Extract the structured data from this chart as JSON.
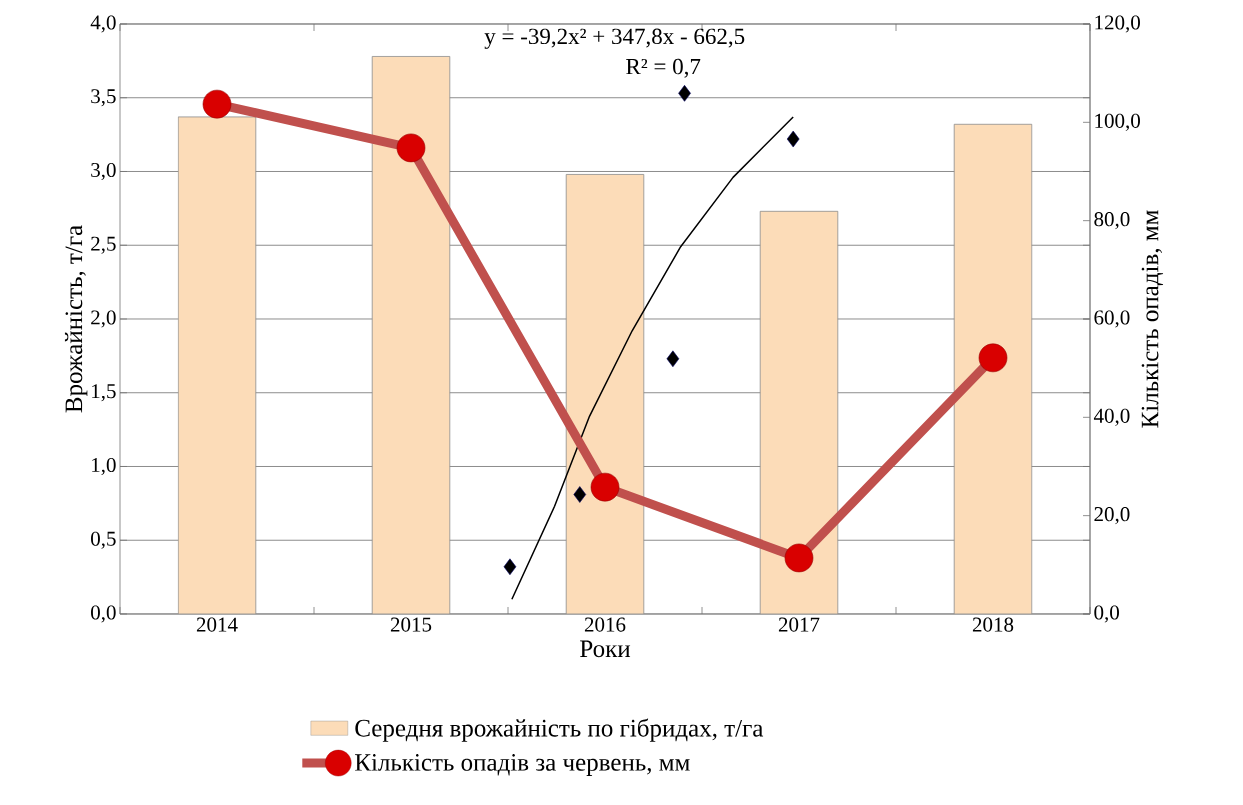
{
  "chart_data": {
    "type": "bar",
    "xlabel": "Роки",
    "ylabel": "Врожайність, т/га",
    "y2label": "Кількість опадів, мм",
    "x": [
      2014,
      2015,
      2016,
      2017,
      2018
    ],
    "xlim": [
      2013.5,
      2018.5
    ],
    "xticks": [
      2014,
      2015,
      2016,
      2017,
      2018
    ],
    "series": [
      {
        "name": "Середня врожайність по гібридах, т/га",
        "color": "#fcdcb8",
        "values": [
          3.37,
          3.78,
          2.98,
          2.73,
          3.32
        ]
      },
      {
        "name": "Кількість опадів за червень, мм",
        "type": "line",
        "axis": "y2",
        "color": "#c0504d",
        "marker": "circle",
        "values": [
          103.7,
          94.8,
          25.8,
          11.4,
          52.1
        ]
      },
      {
        "type": "scatter",
        "color": "#000000",
        "marker": "diamond",
        "x": [
          2015.51,
          2015.87,
          2016.35,
          2016.41,
          2016.97
        ],
        "values": [
          0.32,
          0.81,
          1.73,
          3.53,
          3.22
        ]
      },
      {
        "type": "line",
        "color": "#000000",
        "marker": "none",
        "x": [
          2015.52,
          2015.74,
          2015.92,
          2016.14,
          2016.39,
          2016.66,
          2016.97
        ],
        "values": [
          0.1,
          0.73,
          1.34,
          1.92,
          2.49,
          2.96,
          3.37
        ]
      }
    ],
    "ylim": [
      0,
      4
    ],
    "yticks": [
      {
        "value": 0,
        "label": "0,0"
      },
      {
        "value": 0.5,
        "label": "0,5"
      },
      {
        "value": 1,
        "label": "1,0"
      },
      {
        "value": 1.5,
        "label": "1,5"
      },
      {
        "value": 2,
        "label": "2,0"
      },
      {
        "value": 2.5,
        "label": "2,5"
      },
      {
        "value": 3,
        "label": "3,0"
      },
      {
        "value": 3.5,
        "label": "3,5"
      },
      {
        "value": 4,
        "label": "4,0"
      }
    ],
    "y2lim": [
      0,
      120
    ],
    "y2ticks": [
      {
        "value": 0,
        "label": "0,0"
      },
      {
        "value": 20,
        "label": "20,0"
      },
      {
        "value": 40,
        "label": "40,0"
      },
      {
        "value": 60,
        "label": "60,0"
      },
      {
        "value": 80,
        "label": "80,0"
      },
      {
        "value": 100,
        "label": "100,0"
      },
      {
        "value": 120,
        "label": "120,0"
      }
    ],
    "grid": "y",
    "legend": "bottom",
    "annotations": [
      "y = -39,2x² + 347,8x - 662,5",
      "R² = 0,7"
    ]
  }
}
